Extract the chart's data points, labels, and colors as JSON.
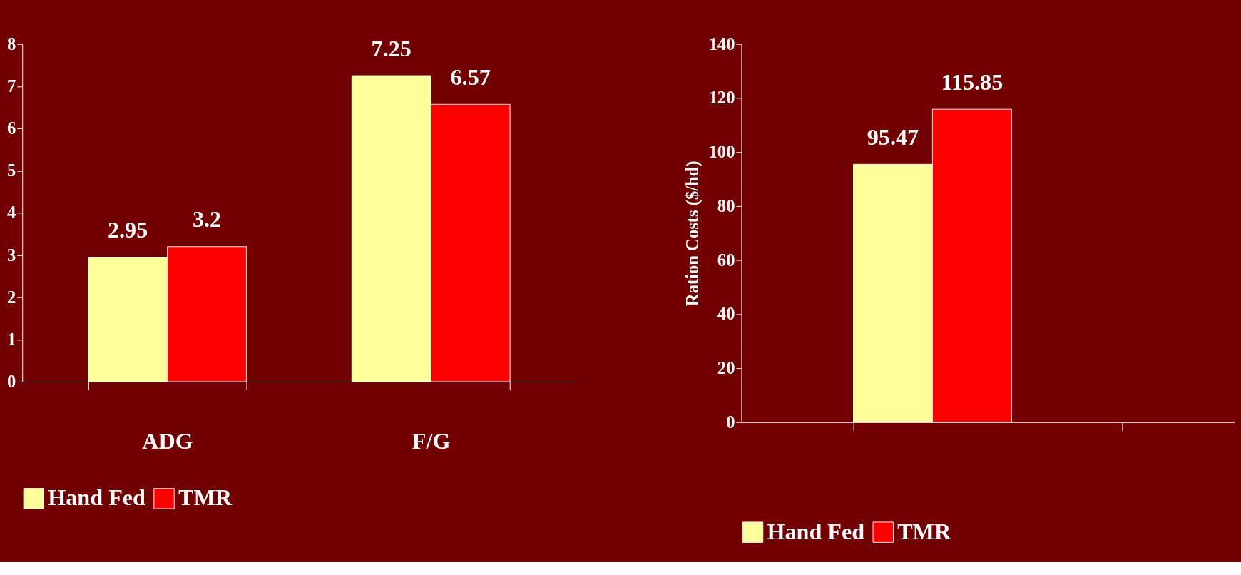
{
  "chart_data": [
    {
      "type": "bar",
      "categories": [
        "ADG",
        "F/G"
      ],
      "series": [
        {
          "name": "Hand Fed",
          "color": "#ffff99",
          "values": [
            2.95,
            7.25
          ]
        },
        {
          "name": "TMR",
          "color": "#ff0000",
          "values": [
            3.2,
            6.57
          ]
        }
      ],
      "ylim": [
        0,
        8
      ],
      "yticks": [
        0,
        1,
        2,
        3,
        4,
        5,
        6,
        7,
        8
      ],
      "grid": false,
      "legend": "bottom",
      "data_labels": true
    },
    {
      "type": "bar",
      "categories": [
        null
      ],
      "ylabel": "Ration Costs ($/hd)",
      "series": [
        {
          "name": "Hand Fed",
          "color": "#ffff99",
          "values": [
            95.47
          ]
        },
        {
          "name": "TMR",
          "color": "#ff0000",
          "values": [
            115.85
          ]
        }
      ],
      "ylim": [
        0,
        140
      ],
      "yticks": [
        0,
        20,
        40,
        60,
        80,
        100,
        120,
        140
      ],
      "grid": false,
      "legend": "bottom",
      "data_labels": true
    }
  ]
}
